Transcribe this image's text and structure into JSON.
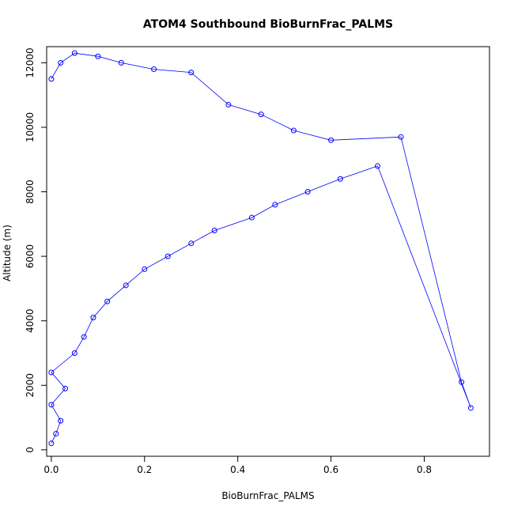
{
  "chart_data": {
    "type": "scatter",
    "title": "ATOM4 Southbound BioBurnFrac_PALMS",
    "xlabel": "BioBurnFrac_PALMS",
    "ylabel": "Altitude (m)",
    "xlim": [
      -0.01,
      0.94
    ],
    "ylim": [
      -200,
      12500
    ],
    "x_ticks": [
      0.0,
      0.2,
      0.4,
      0.6,
      0.8
    ],
    "x_tick_labels": [
      "0.0",
      "0.2",
      "0.4",
      "0.6",
      "0.8"
    ],
    "y_ticks": [
      0,
      2000,
      4000,
      6000,
      8000,
      10000,
      12000
    ],
    "y_tick_labels": [
      "0",
      "2000",
      "4000",
      "6000",
      "8000",
      "10000",
      "12000"
    ],
    "marker": "open-circle",
    "connected": true,
    "grid": false,
    "legend": "none",
    "color": "#0000ff",
    "series": [
      {
        "x": [
          0.0,
          0.01,
          0.02,
          0.0,
          0.03,
          0.0,
          0.05,
          0.07,
          0.09,
          0.12,
          0.16,
          0.2,
          0.25,
          0.3,
          0.35,
          0.43,
          0.48,
          0.55,
          0.62,
          0.7,
          0.9,
          0.88,
          0.75,
          0.6,
          0.52,
          0.45,
          0.38,
          0.3,
          0.22,
          0.15,
          0.1,
          0.05,
          0.02,
          0.0
        ],
        "y": [
          200,
          500,
          900,
          1400,
          1900,
          2400,
          3000,
          3500,
          4100,
          4600,
          5100,
          5600,
          6000,
          6400,
          6800,
          7200,
          7600,
          8000,
          8400,
          8800,
          1300,
          2100,
          9700,
          9600,
          9900,
          10400,
          10700,
          11700,
          11800,
          12000,
          12200,
          12300,
          12000,
          11500
        ]
      }
    ]
  }
}
